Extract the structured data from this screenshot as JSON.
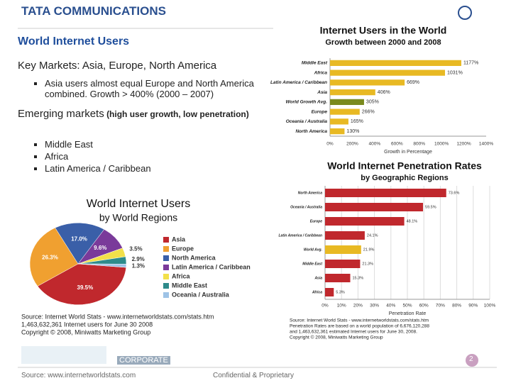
{
  "logo": "TATA COMMUNICATIONS",
  "slide_title": "World Internet Users",
  "key_markets": "Key Markets: Asia, Europe, North America",
  "key_bullets": [
    "Asia users almost equal Europe and North America combined.  Growth > 400% (2000 – 2007)"
  ],
  "emerging_heading": "Emerging markets",
  "emerging_note": "(high user growth, low penetration)",
  "emerging_bullets": [
    "Middle East",
    "Africa",
    "Latin America / Caribbean"
  ],
  "footer": {
    "label": "CORPORATE",
    "source": "Source: www.internetworldstats.com",
    "confidential": "Confidential & Proprietary",
    "page": "2"
  },
  "chart_data": [
    {
      "type": "hbar",
      "title": "Internet Users in the World",
      "subtitle": "Growth between 2000 and 2008",
      "x_label": "Growth in Percentage",
      "categories": [
        "Middle East",
        "Africa",
        "Latin America / Caribbean",
        "Asia",
        "World Growth Avg.",
        "Europe",
        "Oceania / Australia",
        "North America"
      ],
      "values": [
        1177,
        1031,
        669,
        406,
        305,
        266,
        165,
        130
      ],
      "value_labels": [
        "1177%",
        "1031%",
        "669%",
        "406%",
        "305%",
        "266%",
        "165%",
        "130%"
      ],
      "colors": [
        "#e8b923",
        "#e8b923",
        "#e8b923",
        "#e8b923",
        "#7a8a1e",
        "#e8b923",
        "#e8b923",
        "#e8b923"
      ],
      "xlim": [
        0,
        1400
      ],
      "xticks": [
        {
          "value": 0,
          "label": "0%"
        },
        {
          "value": 200,
          "label": "200%"
        },
        {
          "value": 400,
          "label": "400%"
        },
        {
          "value": 600,
          "label": "600%"
        },
        {
          "value": 800,
          "label": "800%"
        },
        {
          "value": 1000,
          "label": "1000%"
        },
        {
          "value": 1200,
          "label": "1200%"
        },
        {
          "value": 1400,
          "label": "1400%"
        }
      ],
      "grid": false
    },
    {
      "type": "hbar",
      "title": "World Internet Penetration Rates",
      "subtitle": "by Geographic Regions",
      "x_label": "Penetration Rate",
      "categories": [
        "North America",
        "Oceania / Australia",
        "Europe",
        "Latin America / Caribbean",
        "World Avg.",
        "Middle East",
        "Asia",
        "Africa"
      ],
      "values": [
        73.6,
        59.5,
        48.1,
        24.1,
        21.9,
        21.3,
        15.3,
        5.3
      ],
      "value_labels": [
        "73.6%",
        "59.5%",
        "48.1%",
        "24.1%",
        "21.9%",
        "21.3%",
        "15.3%",
        "5.3%"
      ],
      "colors": [
        "#c0282d",
        "#c0282d",
        "#c0282d",
        "#c0282d",
        "#e8b923",
        "#c0282d",
        "#c0282d",
        "#c0282d"
      ],
      "xlim": [
        0,
        100
      ],
      "xticks": [
        {
          "value": 0,
          "label": "0%"
        },
        {
          "value": 10,
          "label": "10%"
        },
        {
          "value": 20,
          "label": "20%"
        },
        {
          "value": 30,
          "label": "30%"
        },
        {
          "value": 40,
          "label": "40%"
        },
        {
          "value": 50,
          "label": "50%"
        },
        {
          "value": 60,
          "label": "60%"
        },
        {
          "value": 70,
          "label": "70%"
        },
        {
          "value": 80,
          "label": "80%"
        },
        {
          "value": 90,
          "label": "90%"
        },
        {
          "value": 100,
          "label": "100%"
        }
      ],
      "grid": true,
      "source": [
        "Source: Internet World Stats - www.internetworldstats.com/stats.htm",
        "Penetration Rates are based on a world population of 6,676,120,288",
        "and 1,463,632,361 estimated Internet users for June 30, 2008.",
        "Copyright © 2008, Miniwatts Marketing Group"
      ]
    },
    {
      "type": "pie",
      "title": "World Internet Users",
      "subtitle": "by World Regions",
      "categories": [
        "Asia",
        "Europe",
        "North America",
        "Latin America / Caribbean",
        "Africa",
        "Middle East",
        "Oceania / Australia"
      ],
      "values": [
        39.5,
        26.3,
        17.0,
        9.6,
        3.5,
        2.9,
        1.3
      ],
      "value_labels": [
        "39.5%",
        "26.3%",
        "17.0%",
        "9.6%",
        "3.5%",
        "2.9%",
        "1.3%"
      ],
      "colors": [
        "#c0282d",
        "#f0a030",
        "#3a5fa8",
        "#7a3a9a",
        "#f2e04a",
        "#2e8b8b",
        "#9ec3e6"
      ],
      "source": [
        "Source: Internet World Stats - www.internetworldstats.com/stats.htm",
        "1,463,632,361 Internet users for June 30 2008",
        "Copyright © 2008, Miniwatts Marketing Group"
      ]
    }
  ]
}
